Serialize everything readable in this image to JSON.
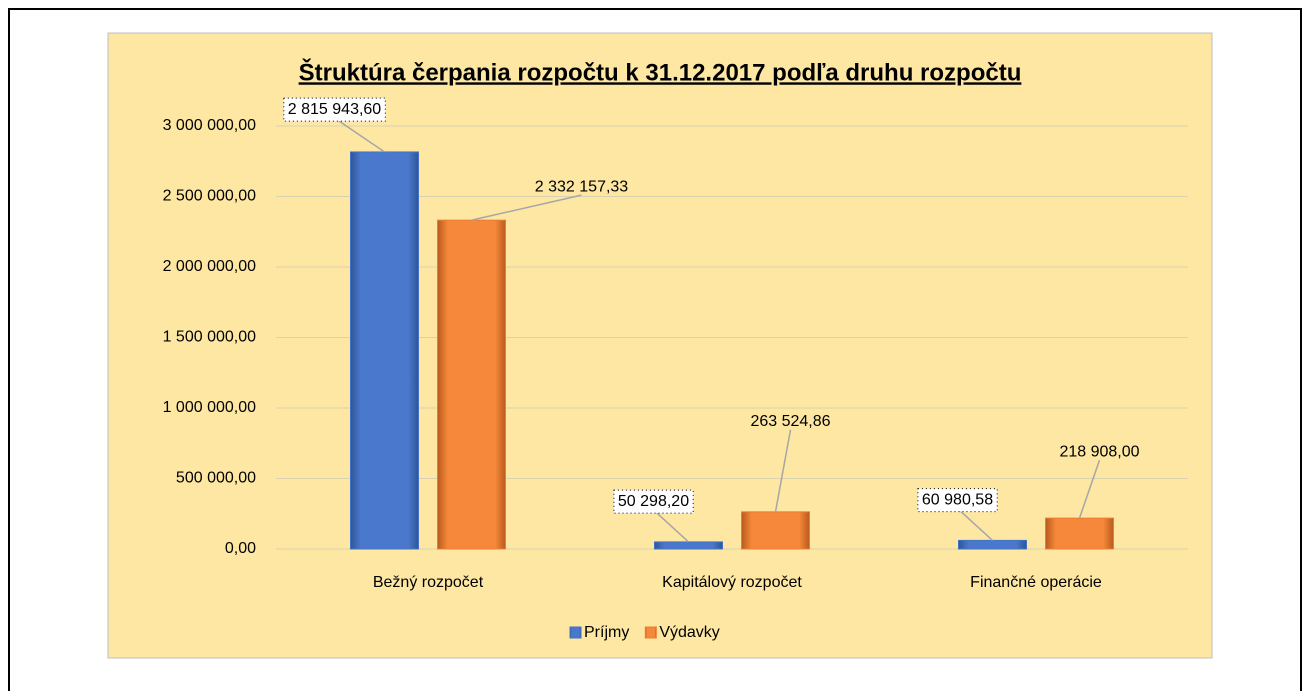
{
  "chart_data": {
    "type": "bar",
    "title": "Štruktúra čerpania rozpočtu k 31.12.2017 podľa druhu rozpočtu",
    "categories": [
      "Bežný rozpočet",
      "Kapitálový rozpočet",
      "Finančné operácie"
    ],
    "series": [
      {
        "name": "Príjmy",
        "color": "#4472c4",
        "values": [
          2815943.6,
          50298.2,
          60980.58
        ],
        "value_labels": [
          "2 815 943,60",
          "50 298,20",
          "60 980,58"
        ]
      },
      {
        "name": "Výdavky",
        "color": "#ed7d31",
        "values": [
          2332157.33,
          263524.86,
          218908.0
        ],
        "value_labels": [
          "2 332 157,33",
          "263 524,86",
          "218 908,00"
        ]
      }
    ],
    "ylim": [
      0,
      3000000
    ],
    "yticks": [
      {
        "value": 0,
        "label": "0,00"
      },
      {
        "value": 500000,
        "label": "500 000,00"
      },
      {
        "value": 1000000,
        "label": "1 000 000,00"
      },
      {
        "value": 1500000,
        "label": "1 500 000,00"
      },
      {
        "value": 2000000,
        "label": "2 000 000,00"
      },
      {
        "value": 2500000,
        "label": "2 500 000,00"
      },
      {
        "value": 3000000,
        "label": "3 000 000,00"
      }
    ],
    "grid": true,
    "legend": "bottom"
  }
}
